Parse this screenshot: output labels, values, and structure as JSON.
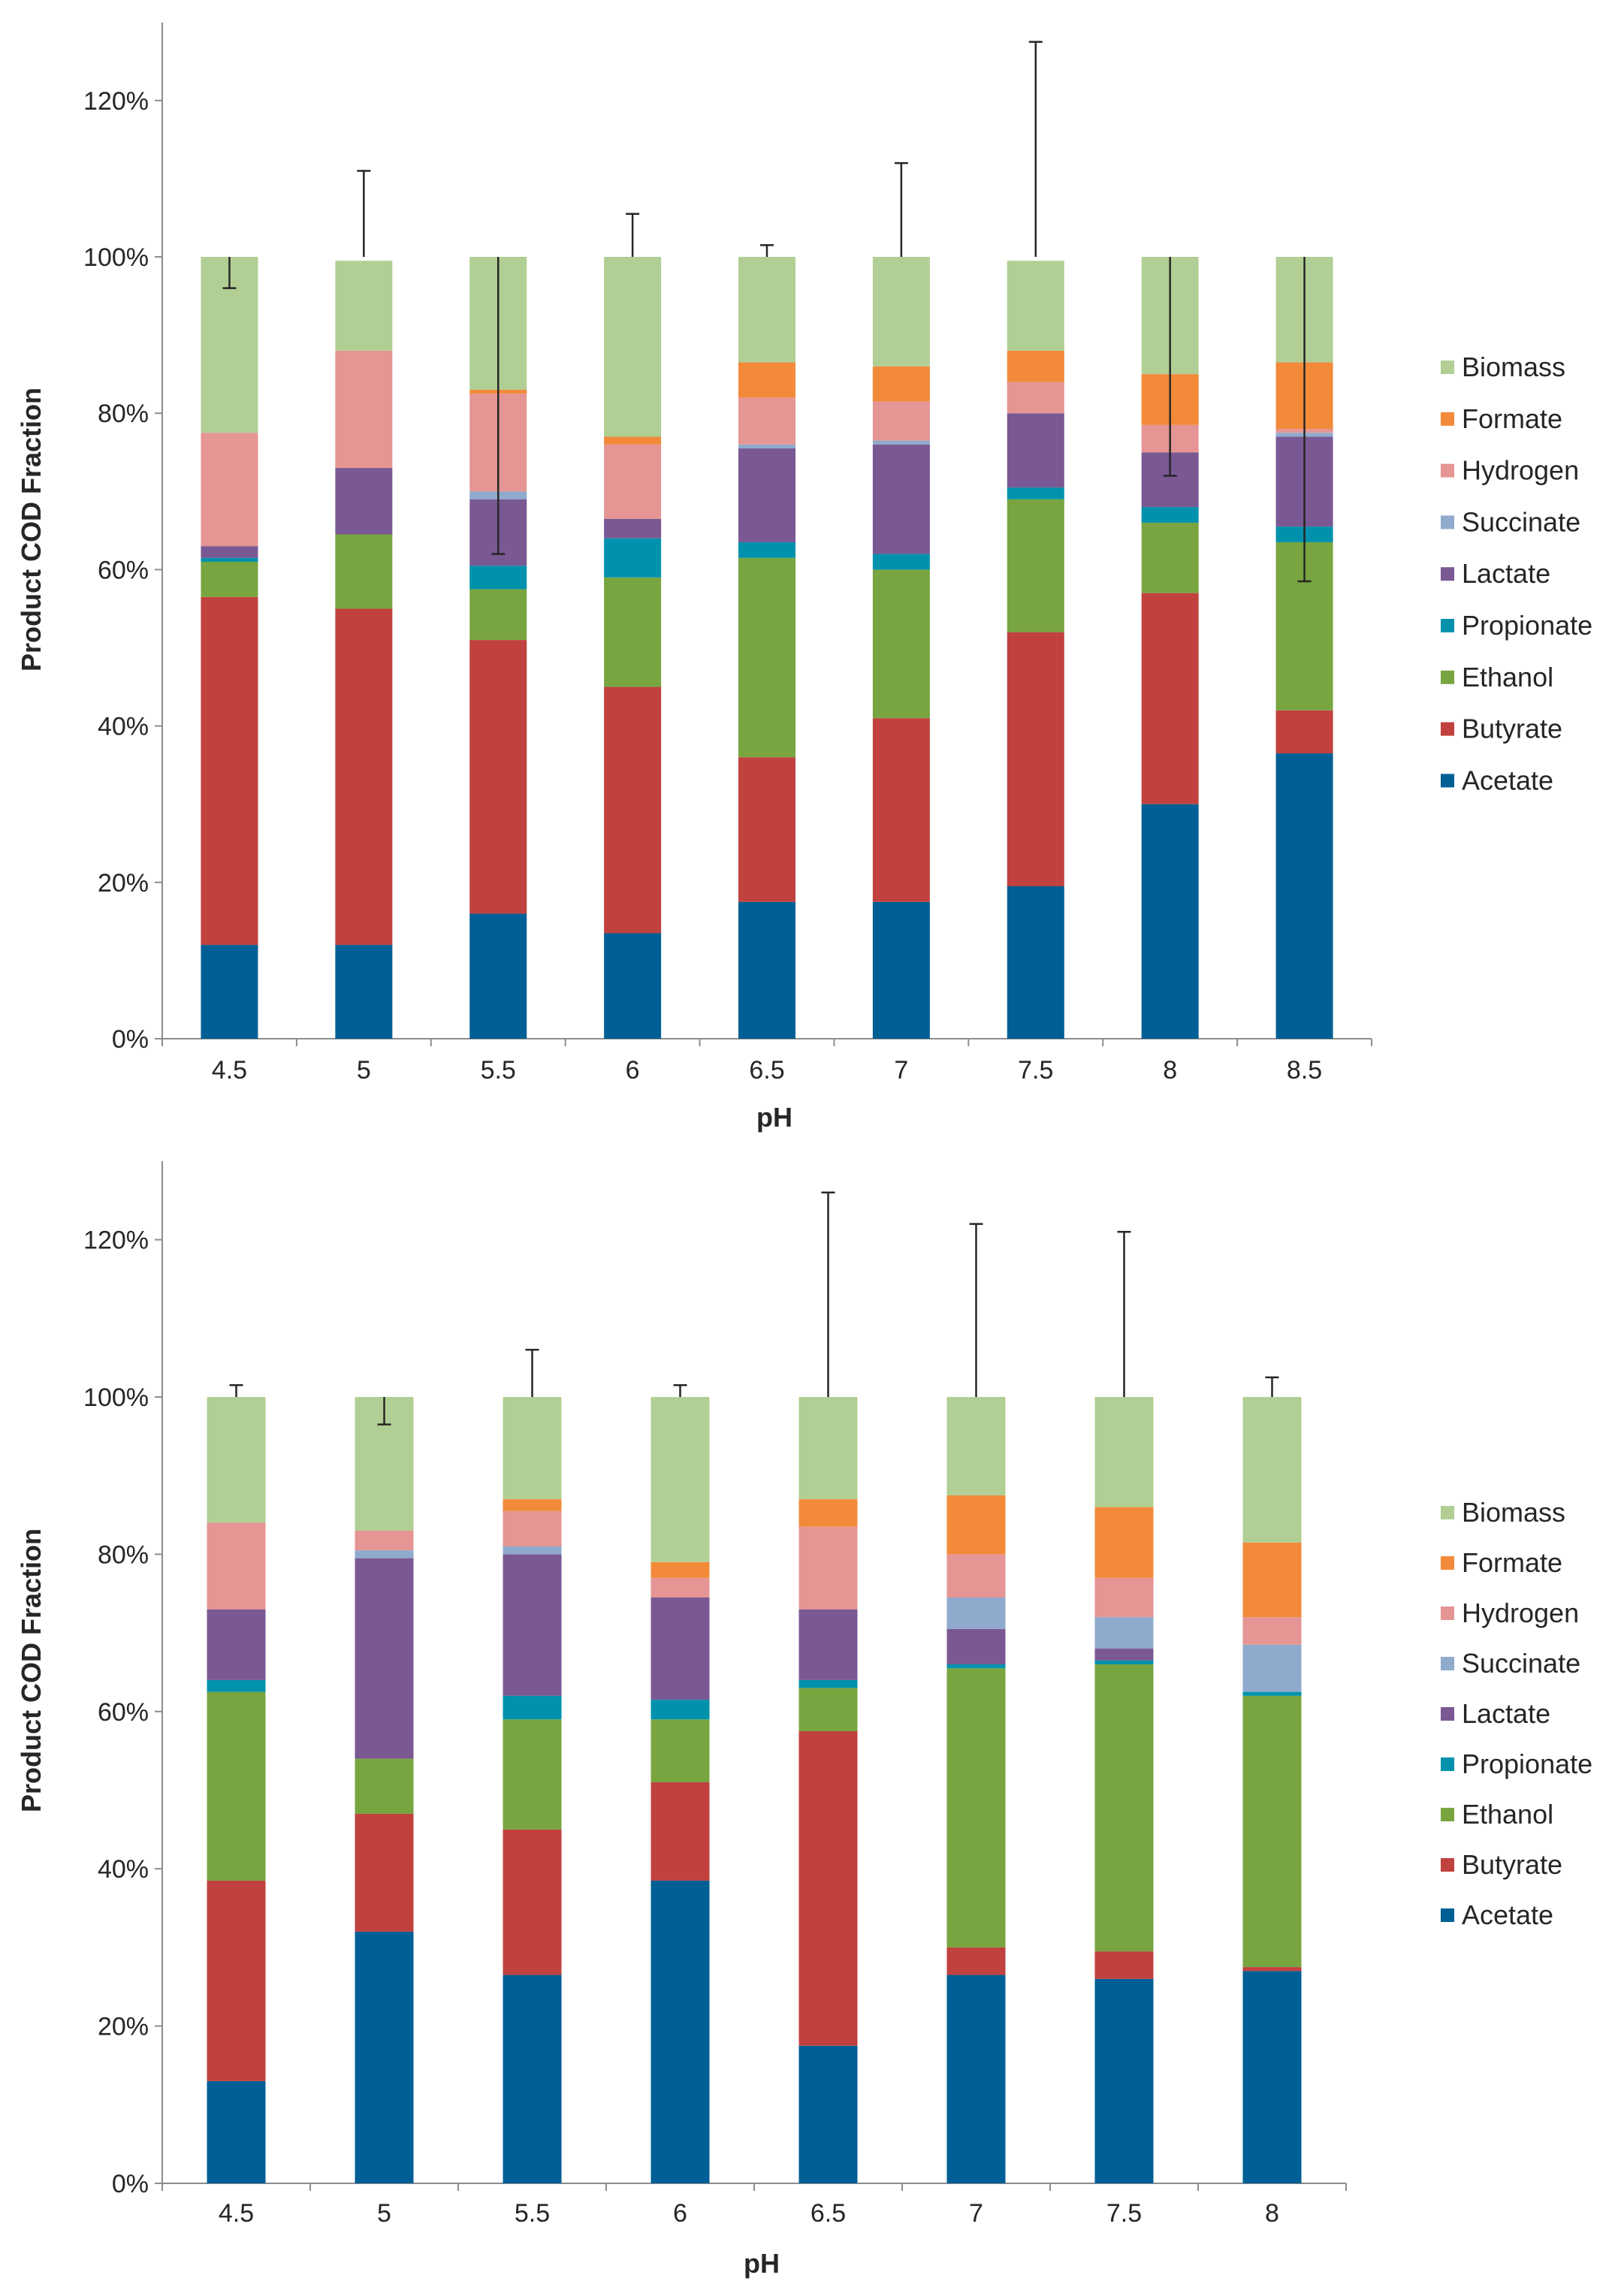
{
  "colors": {
    "Acetate": "#005f94",
    "Butyrate": "#c0413e",
    "Ethanol": "#78a540",
    "Propionate": "#0092ac",
    "Lactate": "#7a5893",
    "Succinate": "#8faacc",
    "Hydrogen": "#e59594",
    "Formate": "#f28a3a",
    "Biomass": "#b1cf94",
    "axis": "#8c8c8c",
    "errorbar": "#262626"
  },
  "chart_data": [
    {
      "type": "bar",
      "stacked": true,
      "ylabel": "Product COD Fraction",
      "xlabel": "pH",
      "ylim": [
        0,
        130
      ],
      "yticks": [
        "0%",
        "20%",
        "40%",
        "60%",
        "80%",
        "100%",
        "120%"
      ],
      "categories": [
        "4.5",
        "5",
        "5.5",
        "6",
        "6.5",
        "7",
        "7.5",
        "8",
        "8.5"
      ],
      "legend": [
        "Biomass",
        "Formate",
        "Hydrogen",
        "Succinate",
        "Lactate",
        "Propionate",
        "Ethanol",
        "Butyrate",
        "Acetate"
      ],
      "series": [
        {
          "name": "Acetate",
          "values": [
            12.0,
            12.0,
            16.0,
            13.5,
            17.5,
            17.5,
            19.5,
            30.0,
            36.5
          ]
        },
        {
          "name": "Butyrate",
          "values": [
            44.5,
            43.0,
            35.0,
            31.5,
            18.5,
            23.5,
            32.5,
            27.0,
            5.5
          ]
        },
        {
          "name": "Ethanol",
          "values": [
            4.5,
            9.5,
            6.5,
            14.0,
            25.5,
            19.0,
            17.0,
            9.0,
            21.5
          ]
        },
        {
          "name": "Propionate",
          "values": [
            0.5,
            0.0,
            3.0,
            5.0,
            2.0,
            2.0,
            1.5,
            2.0,
            2.0
          ]
        },
        {
          "name": "Lactate",
          "values": [
            1.5,
            8.5,
            8.5,
            2.5,
            12.0,
            14.0,
            9.5,
            7.0,
            11.5
          ]
        },
        {
          "name": "Succinate",
          "values": [
            0.0,
            0.0,
            1.0,
            0.0,
            0.5,
            0.5,
            0.0,
            0.0,
            0.5
          ]
        },
        {
          "name": "Hydrogen",
          "values": [
            14.5,
            15.0,
            12.5,
            9.5,
            6.0,
            5.0,
            4.0,
            3.5,
            0.5
          ]
        },
        {
          "name": "Formate",
          "values": [
            0.0,
            0.0,
            0.5,
            1.0,
            4.5,
            4.5,
            4.0,
            6.5,
            8.5
          ]
        },
        {
          "name": "Biomass",
          "values": [
            22.5,
            11.5,
            17.0,
            23.0,
            13.5,
            14.0,
            11.5,
            15.0,
            13.5
          ]
        }
      ],
      "error_bars": [
        {
          "low": 96,
          "high": 100
        },
        {
          "low": 100,
          "high": 111
        },
        {
          "low": 62,
          "high": 100
        },
        {
          "low": 100,
          "high": 105.5
        },
        {
          "low": 100,
          "high": 101.5
        },
        {
          "low": 100,
          "high": 112
        },
        {
          "low": 100,
          "high": 127.5
        },
        {
          "low": 72,
          "high": 100
        },
        {
          "low": 58.5,
          "high": 100
        }
      ]
    },
    {
      "type": "bar",
      "stacked": true,
      "ylabel": "Product COD Fraction",
      "xlabel": "pH",
      "ylim": [
        0,
        130
      ],
      "yticks": [
        "0%",
        "20%",
        "40%",
        "60%",
        "80%",
        "100%",
        "120%"
      ],
      "categories": [
        "4.5",
        "5",
        "5.5",
        "6",
        "6.5",
        "7",
        "7.5",
        "8"
      ],
      "legend": [
        "Biomass",
        "Formate",
        "Hydrogen",
        "Succinate",
        "Lactate",
        "Propionate",
        "Ethanol",
        "Butyrate",
        "Acetate"
      ],
      "series": [
        {
          "name": "Acetate",
          "values": [
            13.0,
            32.0,
            26.5,
            38.5,
            17.5,
            26.5,
            26.0,
            27.0
          ]
        },
        {
          "name": "Butyrate",
          "values": [
            25.5,
            15.0,
            18.5,
            12.5,
            40.0,
            3.5,
            3.5,
            0.5
          ]
        },
        {
          "name": "Ethanol",
          "values": [
            24.0,
            7.0,
            14.0,
            8.0,
            5.5,
            35.5,
            36.5,
            34.5
          ]
        },
        {
          "name": "Propionate",
          "values": [
            1.5,
            0.0,
            3.0,
            2.5,
            1.0,
            0.5,
            0.5,
            0.5
          ]
        },
        {
          "name": "Lactate",
          "values": [
            9.0,
            25.5,
            18.0,
            13.0,
            9.0,
            4.5,
            1.5,
            0.0
          ]
        },
        {
          "name": "Succinate",
          "values": [
            0.0,
            1.0,
            1.0,
            0.0,
            0.0,
            4.0,
            4.0,
            6.0
          ]
        },
        {
          "name": "Hydrogen",
          "values": [
            11.0,
            2.5,
            4.5,
            2.5,
            10.5,
            5.5,
            5.0,
            3.5
          ]
        },
        {
          "name": "Formate",
          "values": [
            0.0,
            0.0,
            1.5,
            2.0,
            3.5,
            7.5,
            9.0,
            9.5
          ]
        },
        {
          "name": "Biomass",
          "values": [
            16.0,
            17.0,
            13.0,
            21.0,
            13.0,
            12.5,
            14.0,
            18.5
          ]
        }
      ],
      "error_bars": [
        {
          "low": 100,
          "high": 101.5
        },
        {
          "low": 96.5,
          "high": 100
        },
        {
          "low": 100,
          "high": 106
        },
        {
          "low": 100,
          "high": 101.5
        },
        {
          "low": 100,
          "high": 126
        },
        {
          "low": 100,
          "high": 122
        },
        {
          "low": 100,
          "high": 121
        },
        {
          "low": 100,
          "high": 102.5
        }
      ]
    }
  ]
}
